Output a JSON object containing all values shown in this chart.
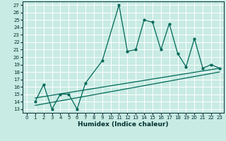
{
  "xlabel": "Humidex (Indice chaleur)",
  "bg_color": "#c8ebe3",
  "line_color": "#006858",
  "xlim": [
    -0.5,
    23.5
  ],
  "ylim": [
    12.5,
    27.5
  ],
  "xticks": [
    0,
    1,
    2,
    3,
    4,
    5,
    6,
    7,
    8,
    9,
    10,
    11,
    12,
    13,
    14,
    15,
    16,
    17,
    18,
    19,
    20,
    21,
    22,
    23
  ],
  "yticks": [
    13,
    14,
    15,
    16,
    17,
    18,
    19,
    20,
    21,
    22,
    23,
    24,
    25,
    26,
    27
  ],
  "line1_x": [
    1,
    2,
    3,
    4,
    5,
    6,
    7,
    9,
    11,
    12,
    13,
    14,
    15,
    16,
    17,
    18,
    19,
    20,
    21,
    22,
    23
  ],
  "line1_y": [
    14,
    16.3,
    13,
    15,
    15,
    13,
    16.5,
    19.5,
    27,
    20.8,
    21,
    25,
    24.7,
    21,
    24.5,
    20.5,
    18.7,
    22.5,
    18.5,
    19.0,
    18.5
  ],
  "line2_x": [
    1,
    23
  ],
  "line2_y": [
    14.5,
    18.5
  ],
  "line3_x": [
    1,
    23
  ],
  "line3_y": [
    13.5,
    18.0
  ],
  "tick_fontsize": 5.0,
  "xlabel_fontsize": 6.5
}
